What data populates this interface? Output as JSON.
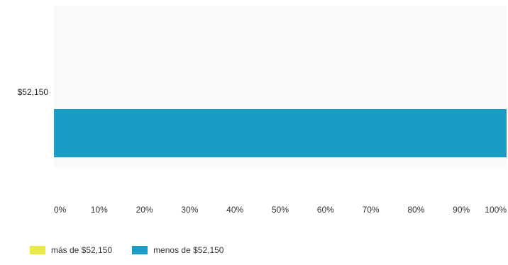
{
  "chart_data": {
    "type": "bar",
    "orientation": "horizontal",
    "stacked": true,
    "categories": [
      "$52,150"
    ],
    "series": [
      {
        "name": "más de $52,150",
        "values": [
          0
        ],
        "color": "#e8e84a"
      },
      {
        "name": "menos de $52,150",
        "values": [
          100
        ],
        "color": "#1b9cc4"
      }
    ],
    "x_ticks": [
      "0%",
      "10%",
      "20%",
      "30%",
      "40%",
      "50%",
      "60%",
      "70%",
      "80%",
      "90%",
      "100%"
    ],
    "xlim": [
      0,
      100
    ],
    "xunit": "%",
    "legend_position": "bottom-left",
    "grid": false
  }
}
